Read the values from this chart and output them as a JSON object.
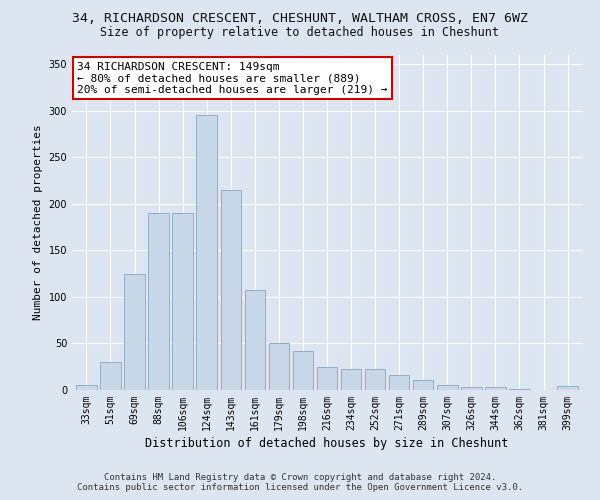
{
  "title_line1": "34, RICHARDSON CRESCENT, CHESHUNT, WALTHAM CROSS, EN7 6WZ",
  "title_line2": "Size of property relative to detached houses in Cheshunt",
  "xlabel": "Distribution of detached houses by size in Cheshunt",
  "ylabel": "Number of detached properties",
  "categories": [
    "33sqm",
    "51sqm",
    "69sqm",
    "88sqm",
    "106sqm",
    "124sqm",
    "143sqm",
    "161sqm",
    "179sqm",
    "198sqm",
    "216sqm",
    "234sqm",
    "252sqm",
    "271sqm",
    "289sqm",
    "307sqm",
    "326sqm",
    "344sqm",
    "362sqm",
    "381sqm",
    "399sqm"
  ],
  "values": [
    5,
    30,
    125,
    190,
    190,
    295,
    215,
    107,
    50,
    42,
    25,
    23,
    23,
    16,
    11,
    5,
    3,
    3,
    1,
    0,
    4
  ],
  "bar_color": "#c8d8e8",
  "bar_edgecolor": "#8ab0cc",
  "ylim": [
    0,
    360
  ],
  "yticks": [
    0,
    50,
    100,
    150,
    200,
    250,
    300,
    350
  ],
  "annotation_text": "34 RICHARDSON CRESCENT: 149sqm\n← 80% of detached houses are smaller (889)\n20% of semi-detached houses are larger (219) →",
  "annotation_box_color": "#ffffff",
  "annotation_box_edgecolor": "#cc0000",
  "footer_line1": "Contains HM Land Registry data © Crown copyright and database right 2024.",
  "footer_line2": "Contains public sector information licensed under the Open Government Licence v3.0.",
  "background_color": "#dde6f0",
  "plot_background_color": "#dde6f0",
  "title_fontsize": 9.5,
  "subtitle_fontsize": 8.5,
  "tick_fontsize": 7,
  "ylabel_fontsize": 8,
  "xlabel_fontsize": 8.5,
  "footer_fontsize": 6.5,
  "annotation_fontsize": 8
}
